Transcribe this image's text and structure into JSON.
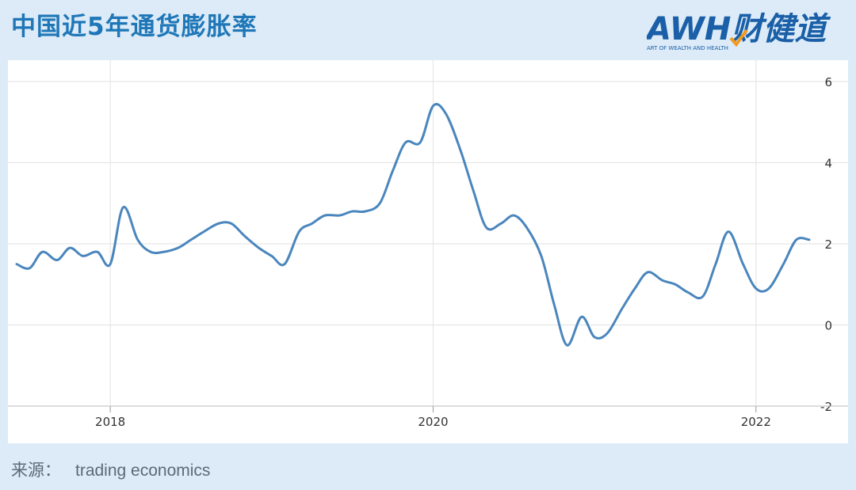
{
  "header": {
    "title": "中国近5年通货膨胀率",
    "logo_text": "AWH财健道",
    "logo_subtitle": "ART OF WEALTH AND HEALTH"
  },
  "footer": {
    "source_label": "来源：",
    "source_value": "trading economics"
  },
  "colors": {
    "background": "#dcebf7",
    "title": "#1f77b8",
    "line": "#4a86bd",
    "grid": "#e2e2e2",
    "logo_blue": "#1a5fa8",
    "logo_orange": "#f39a1e"
  },
  "chart_data": {
    "type": "line",
    "title": "",
    "xlabel": "",
    "ylabel": "",
    "ylim": [
      -2,
      6
    ],
    "yticks": [
      "6",
      "4",
      "2",
      "0",
      "-2"
    ],
    "ytick_values": [
      6,
      4,
      2,
      0,
      -2
    ],
    "xticks": [
      "2018",
      "2020",
      "2022"
    ],
    "xtick_values": [
      2018,
      2020,
      2022
    ],
    "grid": true,
    "y_axis_side": "right",
    "series": [
      {
        "values": [
          [
            2017.42,
            1.5
          ],
          [
            2017.5,
            1.4
          ],
          [
            2017.58,
            1.8
          ],
          [
            2017.67,
            1.6
          ],
          [
            2017.75,
            1.9
          ],
          [
            2017.83,
            1.7
          ],
          [
            2017.92,
            1.8
          ],
          [
            2018.0,
            1.5
          ],
          [
            2018.08,
            2.9
          ],
          [
            2018.17,
            2.1
          ],
          [
            2018.25,
            1.8
          ],
          [
            2018.33,
            1.8
          ],
          [
            2018.42,
            1.9
          ],
          [
            2018.5,
            2.1
          ],
          [
            2018.58,
            2.3
          ],
          [
            2018.67,
            2.5
          ],
          [
            2018.75,
            2.5
          ],
          [
            2018.83,
            2.2
          ],
          [
            2018.92,
            1.9
          ],
          [
            2019.0,
            1.7
          ],
          [
            2019.08,
            1.5
          ],
          [
            2019.17,
            2.3
          ],
          [
            2019.25,
            2.5
          ],
          [
            2019.33,
            2.7
          ],
          [
            2019.42,
            2.7
          ],
          [
            2019.5,
            2.8
          ],
          [
            2019.58,
            2.8
          ],
          [
            2019.67,
            3.0
          ],
          [
            2019.75,
            3.8
          ],
          [
            2019.83,
            4.5
          ],
          [
            2019.92,
            4.5
          ],
          [
            2020.0,
            5.4
          ],
          [
            2020.08,
            5.2
          ],
          [
            2020.17,
            4.3
          ],
          [
            2020.25,
            3.3
          ],
          [
            2020.33,
            2.4
          ],
          [
            2020.42,
            2.5
          ],
          [
            2020.5,
            2.7
          ],
          [
            2020.58,
            2.4
          ],
          [
            2020.67,
            1.7
          ],
          [
            2020.75,
            0.5
          ],
          [
            2020.83,
            -0.5
          ],
          [
            2020.92,
            0.2
          ],
          [
            2021.0,
            -0.3
          ],
          [
            2021.08,
            -0.2
          ],
          [
            2021.17,
            0.4
          ],
          [
            2021.25,
            0.9
          ],
          [
            2021.33,
            1.3
          ],
          [
            2021.42,
            1.1
          ],
          [
            2021.5,
            1.0
          ],
          [
            2021.58,
            0.8
          ],
          [
            2021.67,
            0.7
          ],
          [
            2021.75,
            1.5
          ],
          [
            2021.83,
            2.3
          ],
          [
            2021.92,
            1.5
          ],
          [
            2022.0,
            0.9
          ],
          [
            2022.08,
            0.9
          ],
          [
            2022.17,
            1.5
          ],
          [
            2022.25,
            2.1
          ],
          [
            2022.33,
            2.1
          ]
        ]
      }
    ]
  }
}
